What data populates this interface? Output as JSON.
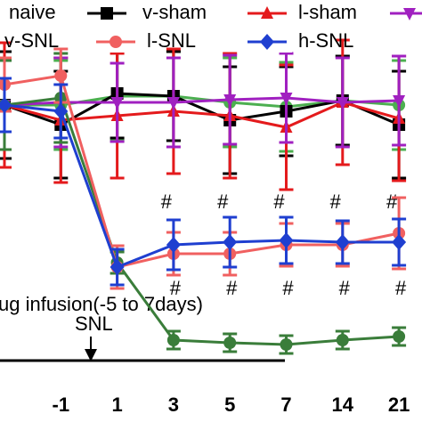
{
  "chart_data": {
    "type": "line",
    "categories": [
      null,
      "-1",
      "1",
      "3",
      "5",
      "7",
      "14",
      "21"
    ],
    "ylim": [
      0,
      20
    ],
    "series": [
      {
        "name": "naive",
        "color": "#4caf50",
        "marker": "circle",
        "values": [
          15.6,
          15.6,
          16.1,
          16.1,
          15.75,
          15.5,
          15.85,
          15.6
        ],
        "errors": [
          2.5,
          2.5,
          2.5,
          2.5,
          2.5,
          2.5,
          2.5,
          2.5
        ]
      },
      {
        "name": "v-sham",
        "color": "#000000",
        "marker": "square",
        "values": [
          15.6,
          14.5,
          16.25,
          16.1,
          14.75,
          15.25,
          15.85,
          14.5
        ],
        "errors": [
          3,
          3,
          2.5,
          2.5,
          3,
          2.5,
          2.5,
          3
        ]
      },
      {
        "name": "l-sham",
        "color": "#e41a1c",
        "marker": "triangle",
        "values": [
          15.6,
          14.75,
          15,
          15.25,
          15,
          14.35,
          15.75,
          14.85
        ],
        "errors": [
          3.5,
          3.5,
          3.5,
          3.5,
          3.5,
          3.5,
          3.5,
          3.5
        ]
      },
      {
        "name": null,
        "color": "#a020c0",
        "marker": "triangle-down",
        "values": [
          15.6,
          15.75,
          15.75,
          15.75,
          15.9,
          16,
          15.75,
          15.85
        ],
        "errors": [
          2.5,
          2.5,
          2.2,
          2.5,
          2.5,
          2.5,
          2.5,
          2.5
        ]
      },
      {
        "name": "v-SNL",
        "color": "#3a7d3a",
        "marker": "circle",
        "values": [
          15.6,
          16,
          6.75,
          2.4,
          2.25,
          2.15,
          2.4,
          2.6
        ],
        "errors": [
          2.5,
          2.5,
          0.6,
          0.5,
          0.5,
          0.5,
          0.5,
          0.5
        ]
      },
      {
        "name": "l-SNL",
        "color": "#f06060",
        "marker": "circle",
        "values": [
          16.75,
          17.25,
          6.5,
          7.25,
          7.25,
          7.75,
          7.75,
          8.4
        ],
        "errors": [
          1.5,
          1.5,
          1.2,
          1.2,
          1.2,
          1.2,
          1.2,
          2.0
        ]
      },
      {
        "name": "h-SNL",
        "color": "#1f3fd0",
        "marker": "diamond",
        "values": [
          15.6,
          15.25,
          6.5,
          7.75,
          7.9,
          8,
          7.9,
          7.9
        ],
        "errors": [
          1.5,
          1.5,
          1.0,
          1.4,
          1.4,
          1.3,
          1.2,
          1.3
        ]
      }
    ],
    "annotations": {
      "hash": "#",
      "infusion": "ug infusion(-5 to 7days)",
      "snl": "SNL"
    }
  }
}
